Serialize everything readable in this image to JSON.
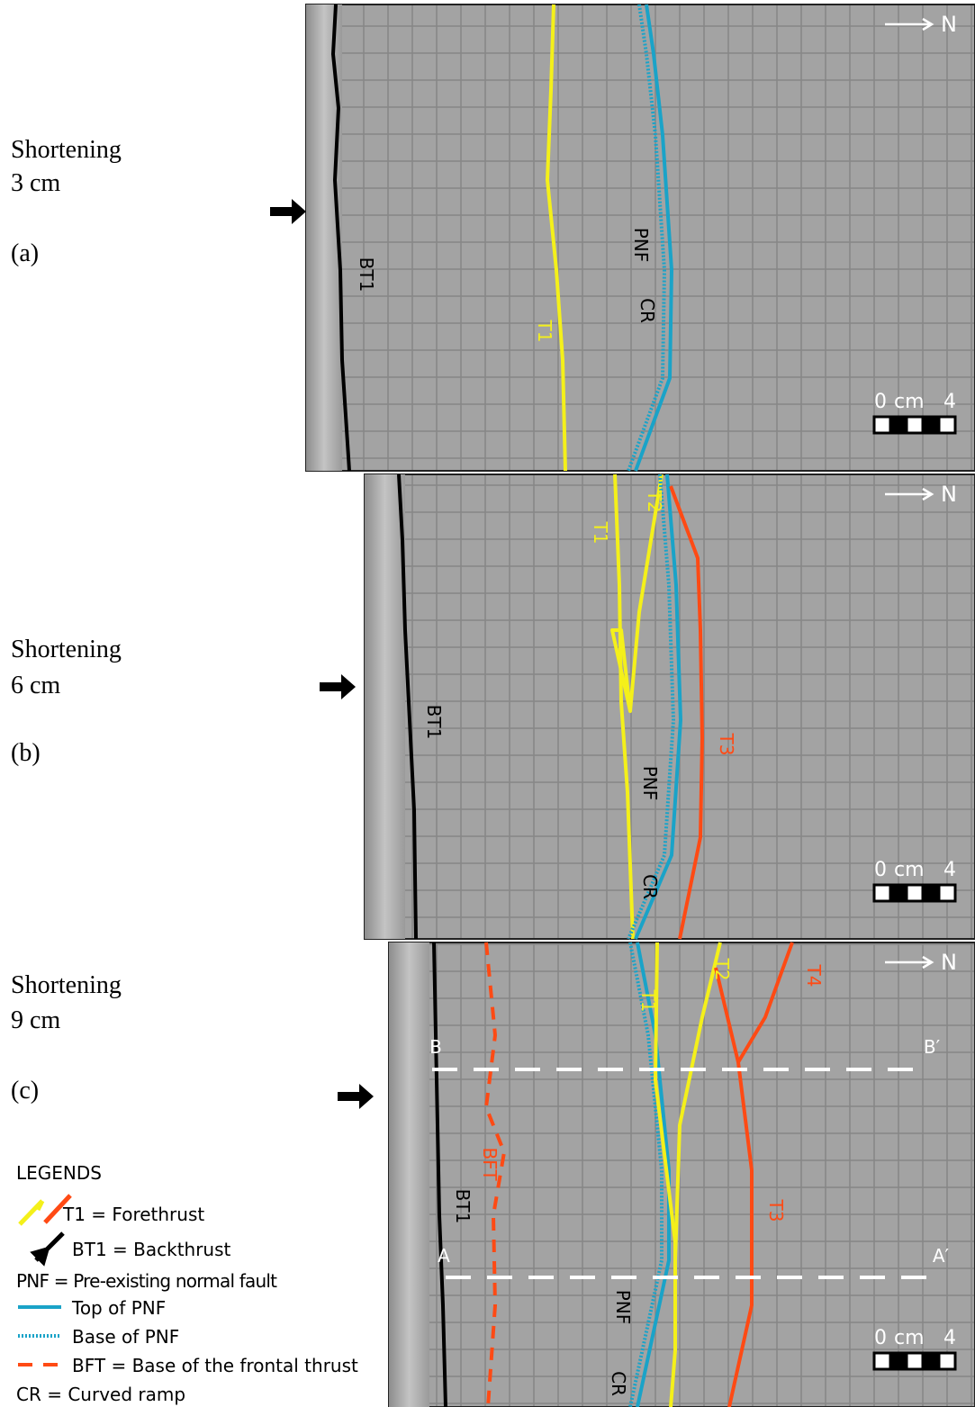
{
  "panels": [
    {
      "shortening": "Shortening",
      "amount": "3 cm",
      "label": "(a)",
      "north": "N",
      "scale": {
        "start": "0",
        "unit": "cm",
        "end": "4"
      },
      "annotations": [
        "BT1",
        "T1",
        "PNF",
        "CR"
      ]
    },
    {
      "shortening": "Shortening",
      "amount": "6 cm",
      "label": "(b)",
      "north": "N",
      "scale": {
        "start": "0",
        "unit": "cm",
        "end": "4"
      },
      "annotations": [
        "T1",
        "T2",
        "BT1",
        "PNF",
        "CR",
        "T3"
      ]
    },
    {
      "shortening": "Shortening",
      "amount": "9 cm",
      "label": "(c)",
      "north": "N",
      "scale": {
        "start": "0",
        "unit": "cm",
        "end": "4"
      },
      "annotations": [
        "T1",
        "T2",
        "T4",
        "B",
        "B′",
        "A",
        "A′",
        "BFT",
        "BT1",
        "T3",
        "PNF",
        "CR"
      ]
    }
  ],
  "legend": {
    "title": "LEGENDS",
    "items": [
      "T1 = Forethrust",
      "BT1 = Backthrust",
      "PNF = Pre-existing normal fault",
      "Top of PNF",
      "Base of PNF",
      "BFT = Base of the frontal thrust",
      "CR = Curved ramp"
    ]
  }
}
